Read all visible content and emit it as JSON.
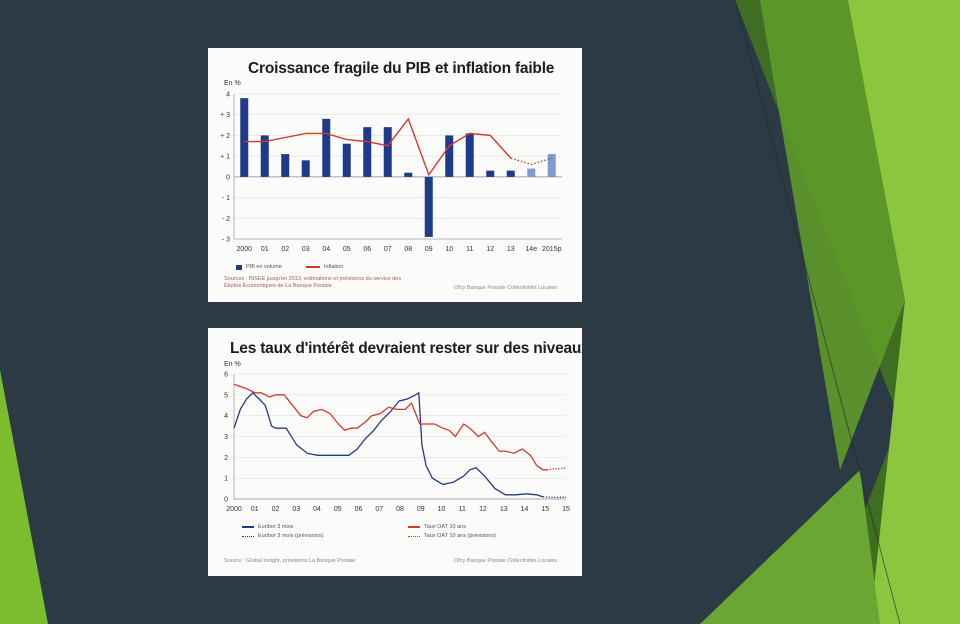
{
  "colors": {
    "background": "#2b3a44",
    "accent_green": "#7cbd2e",
    "bar_blue": "#1e3a8a",
    "bar_forecast": "#7f9ad6",
    "line_red": "#d23b2b",
    "line_blue": "#243b8a"
  },
  "chart_data": [
    {
      "type": "bar",
      "title": "Croissance fragile du PIB et inflation faible",
      "unit_label": "En %",
      "categories": [
        "2000",
        "01",
        "02",
        "03",
        "04",
        "05",
        "06",
        "07",
        "08",
        "09",
        "10",
        "11",
        "12",
        "13",
        "14e",
        "2015p"
      ],
      "ytick_labels": [
        "4",
        "+ 3",
        "+ 2",
        "+ 1",
        "0",
        "- 1",
        "- 2",
        "- 3"
      ],
      "ylim": [
        -3,
        4
      ],
      "grid": true,
      "series": [
        {
          "name": "PIB en volume",
          "type": "bar",
          "values": [
            3.8,
            2.0,
            1.1,
            0.8,
            2.8,
            1.6,
            2.4,
            2.4,
            0.2,
            -2.9,
            2.0,
            2.1,
            0.3,
            0.3,
            0.4,
            1.1
          ],
          "forecast_from_index": 14
        },
        {
          "name": "Inflation",
          "type": "line",
          "values": [
            1.7,
            1.7,
            1.9,
            2.1,
            2.1,
            1.8,
            1.7,
            1.5,
            2.8,
            0.1,
            1.5,
            2.1,
            2.0,
            0.9,
            0.6,
            0.9
          ],
          "forecast_from_index": 13
        }
      ],
      "source": "Sources : INSEE jusqu'en 2013, estimations et prévisions du service des Études Économiques de La Banque Postale",
      "credit": "Ofcy Banque Postale Collectivités Locales"
    },
    {
      "type": "line",
      "title": "Les taux d'intérêt devraient rester sur des niveaux bas",
      "unit_label": "En %",
      "x_tick_labels": [
        "2000",
        "01",
        "02",
        "03",
        "04",
        "05",
        "06",
        "07",
        "08",
        "09",
        "10",
        "11",
        "12",
        "13",
        "14",
        "15",
        "15"
      ],
      "ytick_labels": [
        "6",
        "5",
        "4",
        "3",
        "2",
        "1",
        "0"
      ],
      "ylim": [
        0,
        6
      ],
      "xlim": [
        2000,
        2015.9
      ],
      "grid": true,
      "series": [
        {
          "name": "Euribor 3 mois",
          "color": "#243b8a",
          "style": "solid",
          "x": [
            2000,
            2000.3,
            2000.6,
            2000.9,
            2001.2,
            2001.5,
            2001.8,
            2002.0,
            2002.5,
            2003.0,
            2003.5,
            2004.0,
            2004.5,
            2005.0,
            2005.5,
            2005.9,
            2006.3,
            2006.7,
            2007.0,
            2007.5,
            2007.9,
            2008.3,
            2008.7,
            2008.85,
            2009.0,
            2009.2,
            2009.5,
            2010.0,
            2010.5,
            2011.0,
            2011.3,
            2011.6,
            2012.0,
            2012.5,
            2013.0,
            2013.5,
            2014.0,
            2014.5,
            2014.8
          ],
          "y": [
            3.4,
            4.3,
            4.8,
            5.1,
            4.8,
            4.5,
            3.5,
            3.4,
            3.4,
            2.6,
            2.2,
            2.1,
            2.1,
            2.1,
            2.1,
            2.4,
            2.9,
            3.3,
            3.7,
            4.2,
            4.7,
            4.8,
            5.0,
            5.1,
            2.6,
            1.6,
            1.0,
            0.7,
            0.8,
            1.1,
            1.4,
            1.5,
            1.1,
            0.5,
            0.2,
            0.2,
            0.25,
            0.2,
            0.1
          ]
        },
        {
          "name": "Euribor 3 mois (prévisions)",
          "color": "#243b8a",
          "style": "dotted",
          "x": [
            2014.8,
            2015.2,
            2015.5,
            2015.9
          ],
          "y": [
            0.1,
            0.08,
            0.08,
            0.08
          ]
        },
        {
          "name": "Taux OAT 10 ans",
          "color": "#d23b2b",
          "style": "solid",
          "x": [
            2000,
            2000.3,
            2000.6,
            2001.0,
            2001.3,
            2001.7,
            2002.0,
            2002.4,
            2002.8,
            2003.2,
            2003.5,
            2003.8,
            2004.2,
            2004.6,
            2005.0,
            2005.3,
            2005.6,
            2005.9,
            2006.3,
            2006.6,
            2007.0,
            2007.4,
            2007.8,
            2008.2,
            2008.5,
            2008.9,
            2009.2,
            2009.6,
            2010.0,
            2010.3,
            2010.6,
            2011.0,
            2011.3,
            2011.7,
            2012.0,
            2012.3,
            2012.7,
            2013.0,
            2013.4,
            2013.8,
            2014.2,
            2014.5,
            2014.8,
            2015.0
          ],
          "y": [
            5.5,
            5.4,
            5.3,
            5.1,
            5.1,
            4.9,
            5.0,
            5.0,
            4.5,
            4.0,
            3.9,
            4.2,
            4.3,
            4.1,
            3.6,
            3.3,
            3.4,
            3.4,
            3.7,
            4.0,
            4.1,
            4.4,
            4.3,
            4.3,
            4.6,
            3.6,
            3.6,
            3.6,
            3.4,
            3.3,
            3.0,
            3.6,
            3.4,
            3.0,
            3.2,
            2.8,
            2.3,
            2.3,
            2.2,
            2.4,
            2.1,
            1.6,
            1.4,
            1.4
          ]
        },
        {
          "name": "Taux OAT 10 ans (prévisions)",
          "color": "#d23b2b",
          "style": "dotted",
          "x": [
            2015.0,
            2015.3,
            2015.6,
            2015.9
          ],
          "y": [
            1.4,
            1.45,
            1.45,
            1.5
          ]
        }
      ],
      "source": "Source : Global Insight, prévisions La Banque Postale",
      "credit": "Ofcy Banque Postale Collectivités Locales"
    }
  ]
}
